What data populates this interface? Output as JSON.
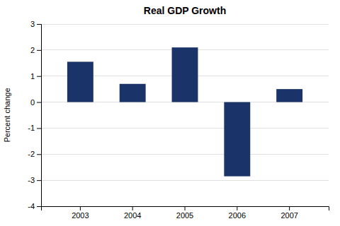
{
  "chart_data": {
    "type": "bar",
    "title": "Real GDP Growth",
    "ylabel": "Percent change",
    "categories": [
      "2003",
      "2004",
      "2005",
      "2006",
      "2007"
    ],
    "values": [
      1.55,
      0.7,
      2.1,
      -2.85,
      0.5
    ],
    "color": "#1a3368",
    "ylim": [
      -4,
      3
    ],
    "yticks": [
      -4,
      -3,
      -2,
      -1,
      0,
      1,
      2,
      3
    ],
    "grid": true
  }
}
